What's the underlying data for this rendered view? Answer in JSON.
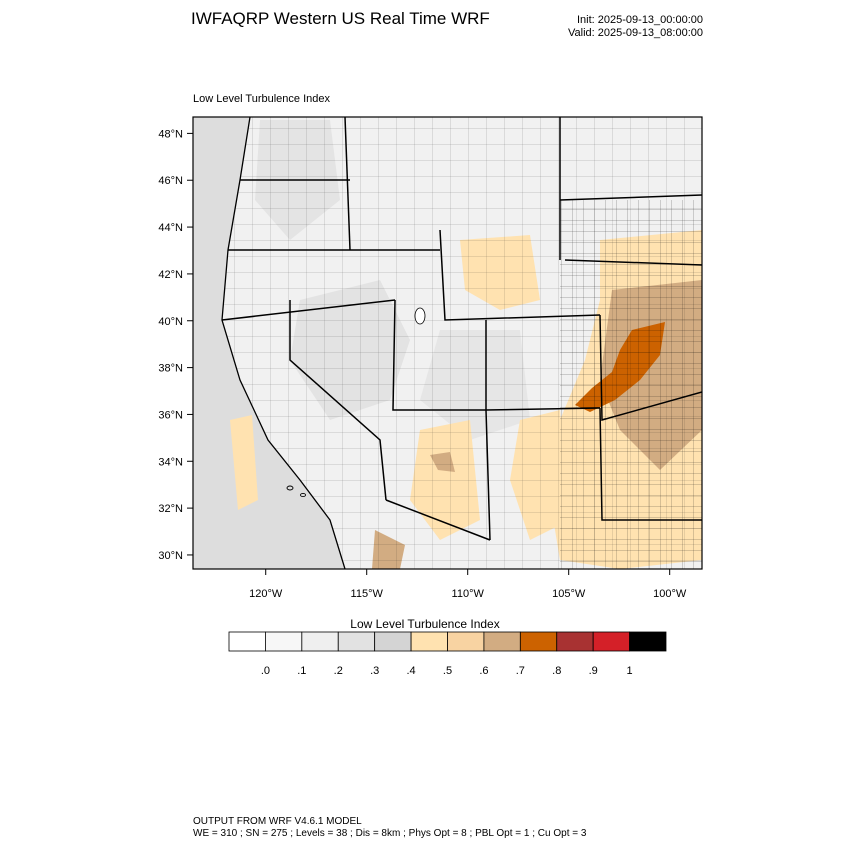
{
  "header": {
    "title": "IWFAQRP Western US Real Time WRF",
    "init": "Init: 2025-09-13_00:00:00",
    "valid": "Valid: 2025-09-13_08:00:00"
  },
  "map": {
    "title": "Low Level Turbulence Index",
    "lat_labels": [
      "48°N",
      "46°N",
      "44°N",
      "42°N",
      "40°N",
      "38°N",
      "36°N",
      "34°N",
      "32°N",
      "30°N"
    ],
    "lon_labels": [
      "120°W",
      "115°W",
      "110°W",
      "105°W",
      "100°W"
    ],
    "lat_values": [
      48,
      46,
      44,
      42,
      40,
      38,
      36,
      34,
      32,
      30
    ],
    "lon_values": [
      -120,
      -115,
      -110,
      -105,
      -100
    ],
    "extent": {
      "lon_min": -123.6,
      "lon_max": -98.4,
      "lat_min": 29.4,
      "lat_max": 48.7
    }
  },
  "colorbar": {
    "title": "Low Level Turbulence Index",
    "labels": [
      ".0",
      ".1",
      ".2",
      ".3",
      ".4",
      ".5",
      ".6",
      ".7",
      ".8",
      ".9",
      "1"
    ],
    "colors": [
      "#ffffff",
      "#f7f7f7",
      "#efefef",
      "#e2e2e2",
      "#d4d4d4",
      "#ffe2b0",
      "#f8d3a2",
      "#d2ac82",
      "#cc6200",
      "#a83232",
      "#d42028",
      "#000000"
    ]
  },
  "footer": {
    "line1": "OUTPUT FROM WRF V4.6.1 MODEL",
    "line2": "WE = 310 ; SN = 275 ; Levels = 38 ; Dis = 8km ; Phys Opt = 8 ; PBL Opt = 1 ; Cu Opt = 3"
  }
}
